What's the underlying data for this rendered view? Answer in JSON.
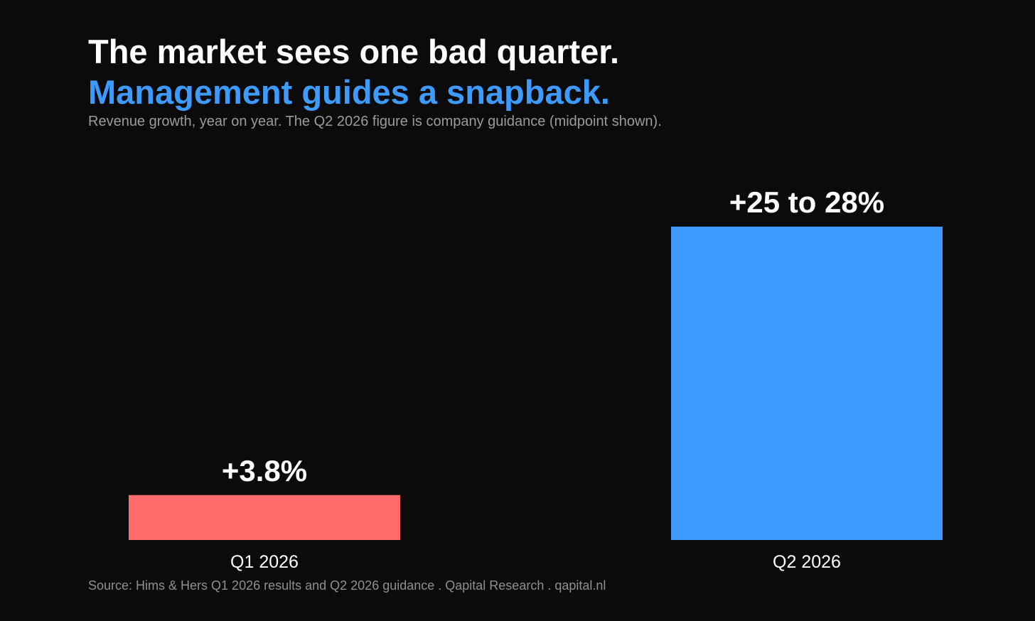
{
  "header": {
    "title": "The market sees one bad quarter.",
    "title_accent": "Management guides a snapback.",
    "subtitle": "Revenue growth, year on year. The Q2 2026 figure is company guidance (midpoint shown)."
  },
  "footer": {
    "source": "Source: Hims & Hers Q1 2026 results and Q2 2026 guidance  .  Qapital Research  .  qapital.nl"
  },
  "colors": {
    "background": "#0b0b0c",
    "accent": "#3d9bff",
    "negative": "#ff6b6b"
  },
  "chart_data": {
    "type": "bar",
    "categories": [
      "Q1 2026",
      "Q2 2026"
    ],
    "values": [
      3.8,
      26.5
    ],
    "data_labels": [
      "+3.8%",
      "+25 to 28%"
    ],
    "bar_colors": [
      "#ff6b6b",
      "#3d9bff"
    ],
    "ylim": [
      0,
      26.5
    ],
    "grid": false,
    "legend": "none"
  }
}
